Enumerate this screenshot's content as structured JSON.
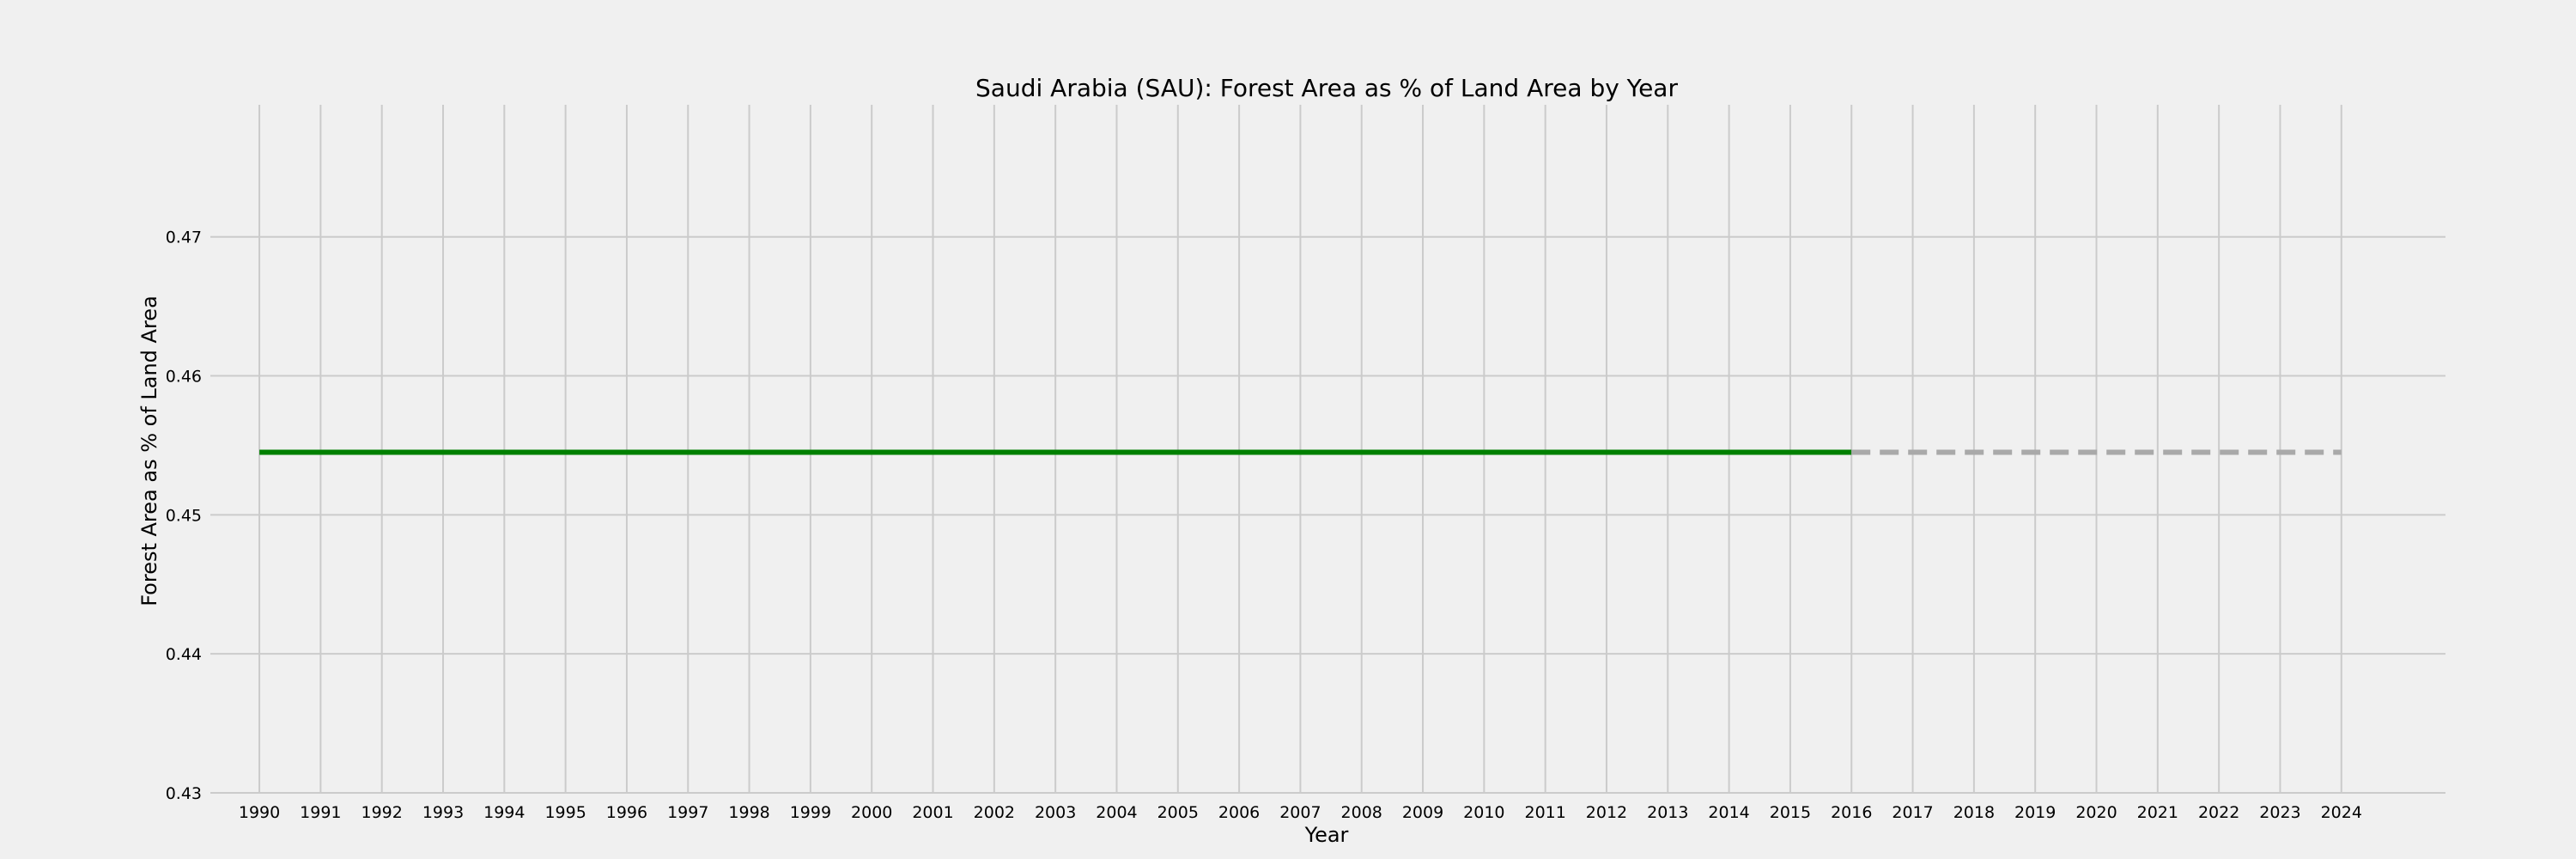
{
  "chart_data": {
    "type": "line",
    "title": "Saudi Arabia (SAU): Forest Area as % of Land Area by Year",
    "xlabel": "Year",
    "ylabel": "Forest Area as % of Land Area",
    "xlim": [
      1989.2,
      2025.7
    ],
    "ylim": [
      0.43,
      0.4795
    ],
    "x_ticks": [
      1990,
      1991,
      1992,
      1993,
      1994,
      1995,
      1996,
      1997,
      1998,
      1999,
      2000,
      2001,
      2002,
      2003,
      2004,
      2005,
      2006,
      2007,
      2008,
      2009,
      2010,
      2011,
      2012,
      2013,
      2014,
      2015,
      2016,
      2017,
      2018,
      2019,
      2020,
      2021,
      2022,
      2023,
      2024
    ],
    "y_ticks": [
      0.43,
      0.44,
      0.45,
      0.46,
      0.47
    ],
    "y_tick_labels": [
      "0.43",
      "0.44",
      "0.45",
      "0.46",
      "0.47"
    ],
    "grid": true,
    "series": [
      {
        "style": "solid",
        "color": "#008000",
        "x": [
          1990,
          1991,
          1992,
          1993,
          1994,
          1995,
          1996,
          1997,
          1998,
          1999,
          2000,
          2001,
          2002,
          2003,
          2004,
          2005,
          2006,
          2007,
          2008,
          2009,
          2010,
          2011,
          2012,
          2013,
          2014,
          2015,
          2016
        ],
        "y": [
          0.4545,
          0.4545,
          0.4545,
          0.4545,
          0.4545,
          0.4545,
          0.4545,
          0.4545,
          0.4545,
          0.4545,
          0.4545,
          0.4545,
          0.4545,
          0.4545,
          0.4545,
          0.4545,
          0.4545,
          0.4545,
          0.4545,
          0.4545,
          0.4545,
          0.4545,
          0.4545,
          0.4545,
          0.4545,
          0.4545,
          0.4545
        ]
      },
      {
        "style": "dashed",
        "color": "#a9a9a9",
        "x": [
          2016,
          2017,
          2018,
          2019,
          2020,
          2021,
          2022,
          2023,
          2024
        ],
        "y": [
          0.4545,
          0.4545,
          0.4545,
          0.4545,
          0.4545,
          0.4545,
          0.4545,
          0.4545,
          0.4545
        ]
      }
    ]
  }
}
